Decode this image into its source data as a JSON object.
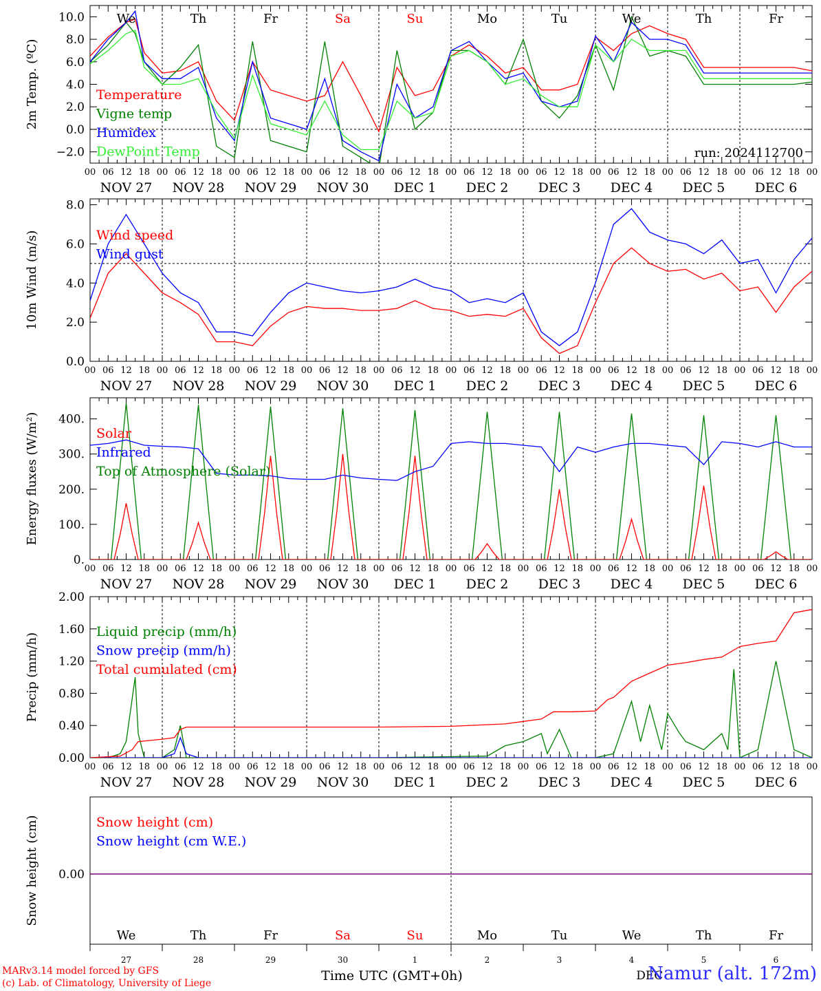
{
  "run_label": "run: 2024112700",
  "days_of_week": [
    "We",
    "Th",
    "Fr",
    "Sa",
    "Su",
    "Mo",
    "Tu",
    "We",
    "Th",
    "Fr"
  ],
  "weekend_days": [
    "Sa",
    "Su"
  ],
  "hour_ticks": [
    "00",
    "06",
    "12",
    "18"
  ],
  "date_labels": [
    "NOV 27",
    "NOV 28",
    "NOV 29",
    "NOV 30",
    "DEC 1",
    "DEC 2",
    "DEC 3",
    "DEC 4",
    "DEC 5",
    "DEC 6"
  ],
  "bottom_day_numbers": [
    "27",
    "28",
    "29",
    "30",
    "1",
    "2",
    "3",
    "4",
    "5",
    "6"
  ],
  "bottom_month_label": "DEC",
  "xlabel": "Time UTC (GMT+0h)",
  "credit_line1": "MARv3.14 model forced by GFS",
  "credit_line2": "(c) Lab. of Climatology, University of Liege",
  "station": "Namur (alt. 172m)",
  "colors": {
    "red": "#ff0000",
    "green": "#008000",
    "blue": "#0000ff",
    "lightgreen": "#33ee33",
    "purple": "#7f007f",
    "weekend": "#ff0000",
    "black": "#000000"
  },
  "chart_data": [
    {
      "type": "line",
      "ylabel": "2m Temp. (ºC)",
      "ylim": [
        -3,
        11
      ],
      "yticks": [
        "10.0",
        "8.0",
        "6.0",
        "4.0",
        "2.0",
        "0.0",
        "−2.0"
      ],
      "ytick_values": [
        10,
        8,
        6,
        4,
        2,
        0,
        -2
      ],
      "reference_line": 0,
      "x_hours": [
        0,
        6,
        12,
        15,
        18,
        24,
        30,
        36,
        42,
        48,
        54,
        60,
        66,
        72,
        78,
        84,
        90,
        96,
        102,
        108,
        114,
        120,
        126,
        132,
        138,
        144,
        150,
        156,
        162,
        168,
        174,
        180,
        186,
        192,
        198,
        204,
        210,
        216,
        222,
        228,
        234,
        240
      ],
      "series": [
        {
          "name": "Temperature",
          "color": "red",
          "values": [
            6.5,
            8.2,
            9.5,
            9.8,
            6.8,
            5.0,
            5.2,
            6.0,
            2.5,
            0.8,
            6.0,
            3.5,
            3.0,
            2.5,
            3.0,
            6.0,
            3.0,
            -0.2,
            5.5,
            3.0,
            3.5,
            6.5,
            7.5,
            6.5,
            5.0,
            5.5,
            3.5,
            3.5,
            4.0,
            8.2,
            7.0,
            8.5,
            9.2,
            8.5,
            8.0,
            5.5,
            5.5,
            5.5,
            5.5,
            5.5,
            5.5,
            5.2
          ]
        },
        {
          "name": "Vigne temp",
          "color": "green",
          "values": [
            6.0,
            7.5,
            9.5,
            8.5,
            6.0,
            4.0,
            5.5,
            7.5,
            -1.5,
            -2.5,
            7.8,
            -1.0,
            -1.5,
            -2.0,
            7.8,
            -1.5,
            -2.5,
            -3.5,
            7.0,
            0.0,
            1.5,
            7.0,
            7.0,
            6.0,
            4.0,
            8.0,
            2.5,
            1.0,
            3.0,
            7.5,
            3.5,
            10.0,
            6.5,
            7.0,
            6.5,
            4.0,
            4.0,
            4.0,
            4.0,
            4.0,
            4.0,
            4.2
          ]
        },
        {
          "name": "Humidex",
          "color": "blue",
          "values": [
            6.0,
            8.0,
            9.5,
            10.5,
            6.0,
            4.5,
            4.5,
            5.5,
            1.0,
            -1.0,
            6.0,
            1.0,
            0.5,
            0.0,
            4.5,
            -1.0,
            -2.0,
            -2.8,
            4.0,
            1.0,
            2.0,
            7.0,
            7.8,
            6.0,
            4.5,
            5.0,
            2.5,
            2.0,
            2.5,
            8.3,
            6.0,
            9.5,
            8.0,
            8.0,
            7.5,
            5.0,
            5.0,
            5.0,
            5.0,
            5.0,
            5.0,
            5.0
          ]
        },
        {
          "name": "DewPoint Temp",
          "color": "lightgreen",
          "values": [
            5.8,
            7.0,
            8.5,
            8.8,
            5.5,
            4.0,
            4.0,
            4.5,
            1.5,
            -0.8,
            4.8,
            0.5,
            0.0,
            -0.5,
            2.5,
            -0.5,
            -1.8,
            -1.8,
            2.5,
            1.0,
            1.5,
            6.5,
            7.0,
            6.0,
            4.0,
            4.5,
            3.0,
            2.0,
            2.0,
            7.5,
            6.0,
            8.0,
            7.0,
            7.0,
            7.0,
            4.5,
            4.5,
            4.5,
            4.5,
            4.5,
            4.5,
            4.5
          ]
        }
      ]
    },
    {
      "type": "line",
      "ylabel": "10m Wind (m/s)",
      "ylim": [
        0,
        8.3
      ],
      "yticks": [
        "8.0",
        "6.0",
        "4.0",
        "2.0",
        "0.0"
      ],
      "ytick_values": [
        8,
        6,
        4,
        2,
        0
      ],
      "reference_line": 5,
      "x_hours": [
        0,
        6,
        12,
        18,
        24,
        30,
        36,
        42,
        48,
        54,
        60,
        66,
        72,
        78,
        84,
        90,
        96,
        102,
        108,
        114,
        120,
        126,
        132,
        138,
        144,
        150,
        156,
        162,
        168,
        174,
        180,
        186,
        192,
        198,
        204,
        210,
        216,
        222,
        228,
        234,
        240
      ],
      "series": [
        {
          "name": "Wind speed",
          "color": "red",
          "values": [
            2.2,
            4.5,
            5.5,
            4.5,
            3.5,
            3.0,
            2.4,
            1.0,
            1.0,
            0.8,
            1.8,
            2.5,
            2.8,
            2.7,
            2.7,
            2.6,
            2.6,
            2.7,
            3.1,
            2.7,
            2.6,
            2.3,
            2.4,
            2.3,
            2.7,
            1.2,
            0.4,
            0.8,
            3.0,
            5.0,
            5.8,
            5.0,
            4.6,
            4.7,
            4.2,
            4.5,
            3.6,
            3.8,
            2.5,
            3.8,
            4.6
          ]
        },
        {
          "name": "Wind gust",
          "color": "blue",
          "values": [
            3.1,
            6.0,
            7.5,
            6.0,
            4.5,
            3.5,
            3.0,
            1.5,
            1.5,
            1.3,
            2.5,
            3.5,
            4.0,
            3.8,
            3.6,
            3.5,
            3.6,
            3.8,
            4.2,
            3.8,
            3.6,
            3.0,
            3.2,
            3.0,
            3.5,
            1.5,
            0.8,
            1.5,
            4.0,
            7.0,
            7.8,
            6.6,
            6.2,
            6.0,
            5.5,
            6.2,
            5.0,
            5.2,
            3.5,
            5.2,
            6.3
          ]
        }
      ]
    },
    {
      "type": "line",
      "ylabel": "Energy fluxes (W/m²)",
      "ylim": [
        0,
        460
      ],
      "yticks": [
        "400.",
        "300.",
        "200.",
        "100.",
        "0."
      ],
      "ytick_values": [
        400,
        300,
        200,
        100,
        0
      ],
      "solar_peaks": [
        160,
        105,
        295,
        300,
        295,
        45,
        200,
        115,
        210,
        22
      ],
      "toa_peaks": [
        445,
        440,
        435,
        430,
        425,
        420,
        420,
        415,
        410,
        410
      ],
      "series": [
        {
          "name": "Solar",
          "color": "red"
        },
        {
          "name": "Infrared",
          "color": "blue",
          "x_hours": [
            0,
            6,
            12,
            18,
            24,
            30,
            36,
            42,
            48,
            54,
            60,
            66,
            72,
            78,
            84,
            90,
            96,
            102,
            108,
            114,
            120,
            126,
            132,
            138,
            144,
            150,
            156,
            162,
            168,
            174,
            180,
            186,
            192,
            198,
            204,
            210,
            216,
            222,
            228,
            234,
            240
          ],
          "values": [
            325,
            330,
            340,
            325,
            322,
            320,
            315,
            245,
            240,
            240,
            238,
            230,
            228,
            228,
            240,
            232,
            228,
            225,
            250,
            265,
            330,
            335,
            330,
            330,
            325,
            320,
            250,
            320,
            305,
            320,
            330,
            330,
            325,
            320,
            270,
            335,
            330,
            320,
            335,
            320,
            320
          ]
        },
        {
          "name": "Top of Atmosphere (Solar)",
          "color": "green"
        }
      ]
    },
    {
      "type": "line",
      "ylabel": "Precip (mm/h)",
      "ylim": [
        0,
        2.0
      ],
      "yticks": [
        "2.00",
        "1.60",
        "1.20",
        "0.80",
        "0.40",
        "0.00"
      ],
      "ytick_values": [
        2.0,
        1.6,
        1.2,
        0.8,
        0.4,
        0.0
      ],
      "series": [
        {
          "name": "Liquid precip (mm/h)",
          "color": "green",
          "x_hours": [
            0,
            6,
            10,
            12,
            15,
            16,
            18,
            24,
            28,
            30,
            32,
            36,
            72,
            96,
            132,
            138,
            144,
            150,
            152,
            156,
            160,
            168,
            174,
            180,
            183,
            186,
            190,
            192,
            196,
            198,
            204,
            210,
            212,
            214,
            216,
            222,
            228,
            234,
            240
          ],
          "values": [
            0,
            0,
            0.05,
            0.2,
            1.0,
            0.3,
            0,
            0,
            0.1,
            0.4,
            0,
            0,
            0,
            0,
            0.02,
            0.15,
            0.2,
            0.3,
            0.05,
            0.35,
            0,
            0,
            0.05,
            0.7,
            0.2,
            0.65,
            0.1,
            0.55,
            0.3,
            0.2,
            0.1,
            0.3,
            0.1,
            1.1,
            0,
            0.1,
            1.2,
            0.1,
            0
          ]
        },
        {
          "name": "Snow precip (mm/h)",
          "color": "blue",
          "x_hours": [
            0,
            24,
            28,
            30,
            32,
            36,
            240
          ],
          "values": [
            0,
            0,
            0.05,
            0.25,
            0.05,
            0,
            0
          ]
        },
        {
          "name": "Total cumulated (cm)",
          "color": "red",
          "x_hours": [
            0,
            10,
            14,
            16,
            24,
            28,
            30,
            32,
            36,
            48,
            72,
            96,
            120,
            132,
            138,
            144,
            150,
            154,
            160,
            168,
            172,
            174,
            180,
            186,
            192,
            198,
            204,
            210,
            216,
            222,
            228,
            234,
            240
          ],
          "values": [
            0,
            0.02,
            0.1,
            0.2,
            0.23,
            0.25,
            0.35,
            0.38,
            0.38,
            0.38,
            0.38,
            0.38,
            0.39,
            0.41,
            0.42,
            0.45,
            0.48,
            0.57,
            0.57,
            0.58,
            0.72,
            0.75,
            0.95,
            1.05,
            1.15,
            1.18,
            1.22,
            1.25,
            1.38,
            1.42,
            1.45,
            1.8,
            1.84
          ]
        }
      ]
    },
    {
      "type": "line",
      "ylabel": "Snow height (cm)",
      "yticks": [
        "0.00"
      ],
      "ytick_values": [
        0
      ],
      "series": [
        {
          "name": "Snow height (cm)",
          "color": "red"
        },
        {
          "name": "Snow height (cm W.E.)",
          "color": "blue"
        }
      ]
    }
  ]
}
